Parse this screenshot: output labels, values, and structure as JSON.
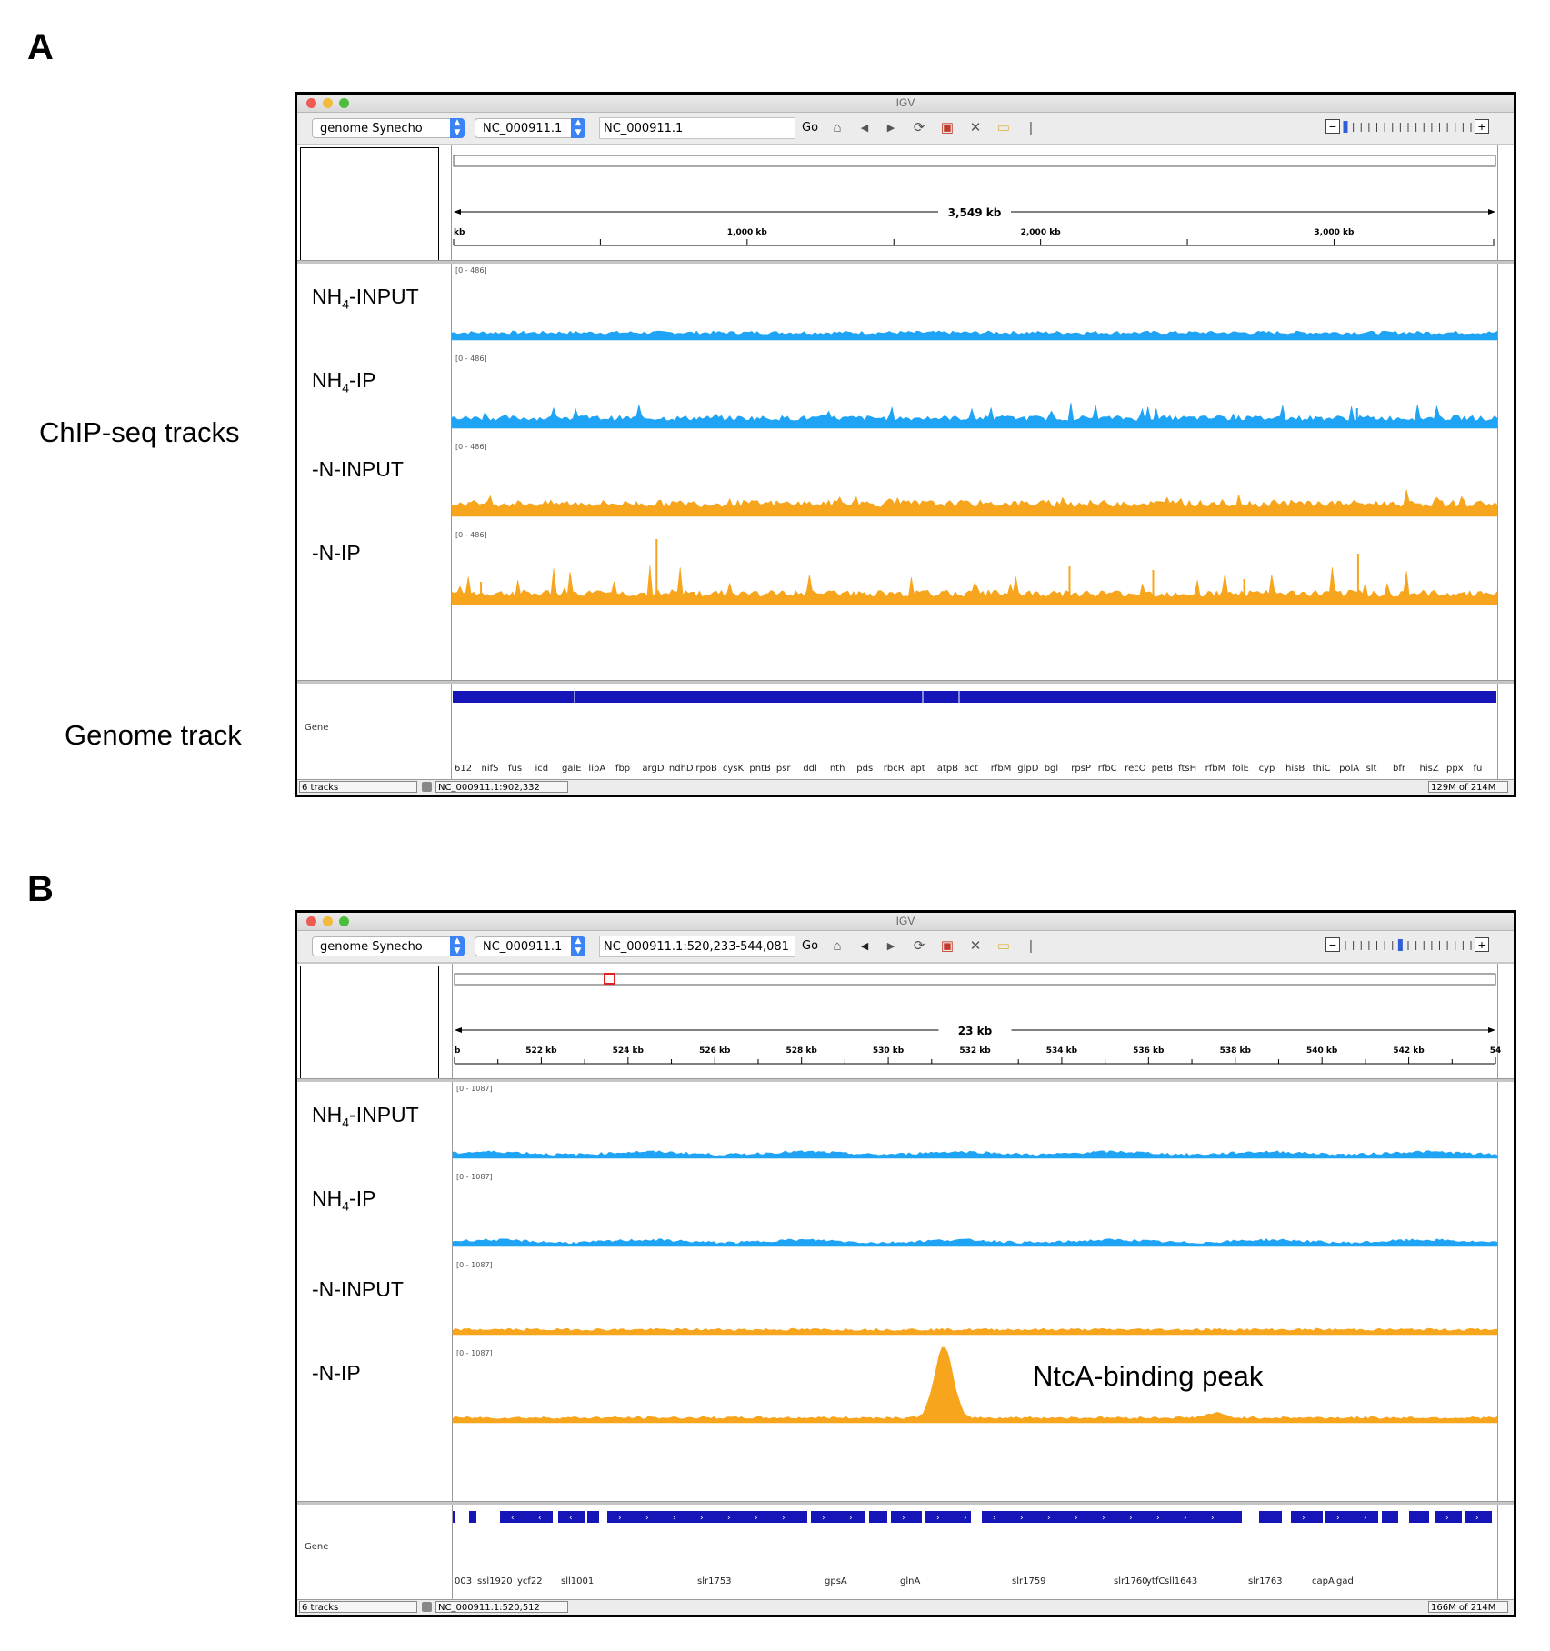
{
  "panels": [
    {
      "letter": "A",
      "side_labels": {
        "chipseq": "ChIP-seq tracks",
        "genome": "Genome track"
      },
      "window": {
        "title": "IGV",
        "genome_select": "genome Synecho",
        "chrom_select": "NC_000911.1",
        "locus": "NC_000911.1",
        "go_label": "Go",
        "zoom_level_fraction": 0.0,
        "ruler": {
          "span_label": "3,549 kb",
          "ticks": [
            "kb",
            "1,000 kb",
            "2,000 kb",
            "3,000 kb"
          ],
          "region_marker": false
        },
        "tracks": [
          {
            "name": "NH",
            "sub": "4",
            "suffix": "-INPUT",
            "range": "[0 - 486]",
            "color": "#1ea3f5",
            "profile": "flat"
          },
          {
            "name": "NH",
            "sub": "4",
            "suffix": "-IP",
            "range": "[0 - 486]",
            "color": "#1ea3f5",
            "profile": "spiky-low"
          },
          {
            "name": "-N-INPUT",
            "sub": "",
            "suffix": "",
            "range": "[0 - 486]",
            "color": "#f7a51c",
            "profile": "flat-orange"
          },
          {
            "name": "-N-IP",
            "sub": "",
            "suffix": "",
            "range": "[0 - 486]",
            "color": "#f7a51c",
            "profile": "spiky-high"
          }
        ],
        "gene_track_label": "Gene",
        "genes": [
          "612",
          "nifS",
          "fus",
          "icd",
          "galE",
          "lipA",
          "fbp",
          "argD",
          "ndhD",
          "rpoB",
          "cysK",
          "pntB",
          "psr",
          "ddl",
          "nth",
          "pds",
          "rbcR",
          "apt",
          "atpB",
          "act",
          "rfbM",
          "glpD",
          "bgl",
          "rpsP",
          "rfbC",
          "recO",
          "petB",
          "ftsH",
          "rfbM",
          "folE",
          "cyp",
          "hisB",
          "thiC",
          "polA",
          "slt",
          "bfr",
          "hisZ",
          "ppx",
          "fu"
        ],
        "status": {
          "tracks": "6 tracks",
          "position": "NC_000911.1:902,332",
          "memory": "129M of 214M"
        }
      }
    },
    {
      "letter": "B",
      "window": {
        "title": "IGV",
        "genome_select": "genome Synecho",
        "chrom_select": "NC_000911.1",
        "locus": "NC_000911.1:520,233-544,081",
        "go_label": "Go",
        "zoom_level_fraction": 0.45,
        "ruler": {
          "span_label": "23 kb",
          "ticks": [
            "b",
            "522 kb",
            "524 kb",
            "526 kb",
            "528 kb",
            "530 kb",
            "532 kb",
            "534 kb",
            "536 kb",
            "538 kb",
            "540 kb",
            "542 kb",
            "54"
          ],
          "region_marker": true
        },
        "tracks": [
          {
            "name": "NH",
            "sub": "4",
            "suffix": "-INPUT",
            "range": "[0 - 1087]",
            "color": "#1ea3f5",
            "profile": "smooth"
          },
          {
            "name": "NH",
            "sub": "4",
            "suffix": "-IP",
            "range": "[0 - 1087]",
            "color": "#1ea3f5",
            "profile": "smooth"
          },
          {
            "name": "-N-INPUT",
            "sub": "",
            "suffix": "",
            "range": "[0 - 1087]",
            "color": "#f7a51c",
            "profile": "smooth-flat"
          },
          {
            "name": "-N-IP",
            "sub": "",
            "suffix": "",
            "range": "[0 - 1087]",
            "color": "#f7a51c",
            "profile": "peak"
          }
        ],
        "annotation": "NtcA-binding peak",
        "gene_track_label": "Gene",
        "genes": [
          "003",
          "ssl1920",
          "ycf22",
          "sll1001",
          "slr1753",
          "gpsA",
          "glnA",
          "slr1759",
          "slr1760",
          "ytfC",
          "sll1643",
          "slr1763",
          "capA",
          "gad"
        ],
        "status": {
          "tracks": "6 tracks",
          "position": "NC_000911.1:520,512",
          "memory": "166M of 214M"
        }
      }
    }
  ]
}
